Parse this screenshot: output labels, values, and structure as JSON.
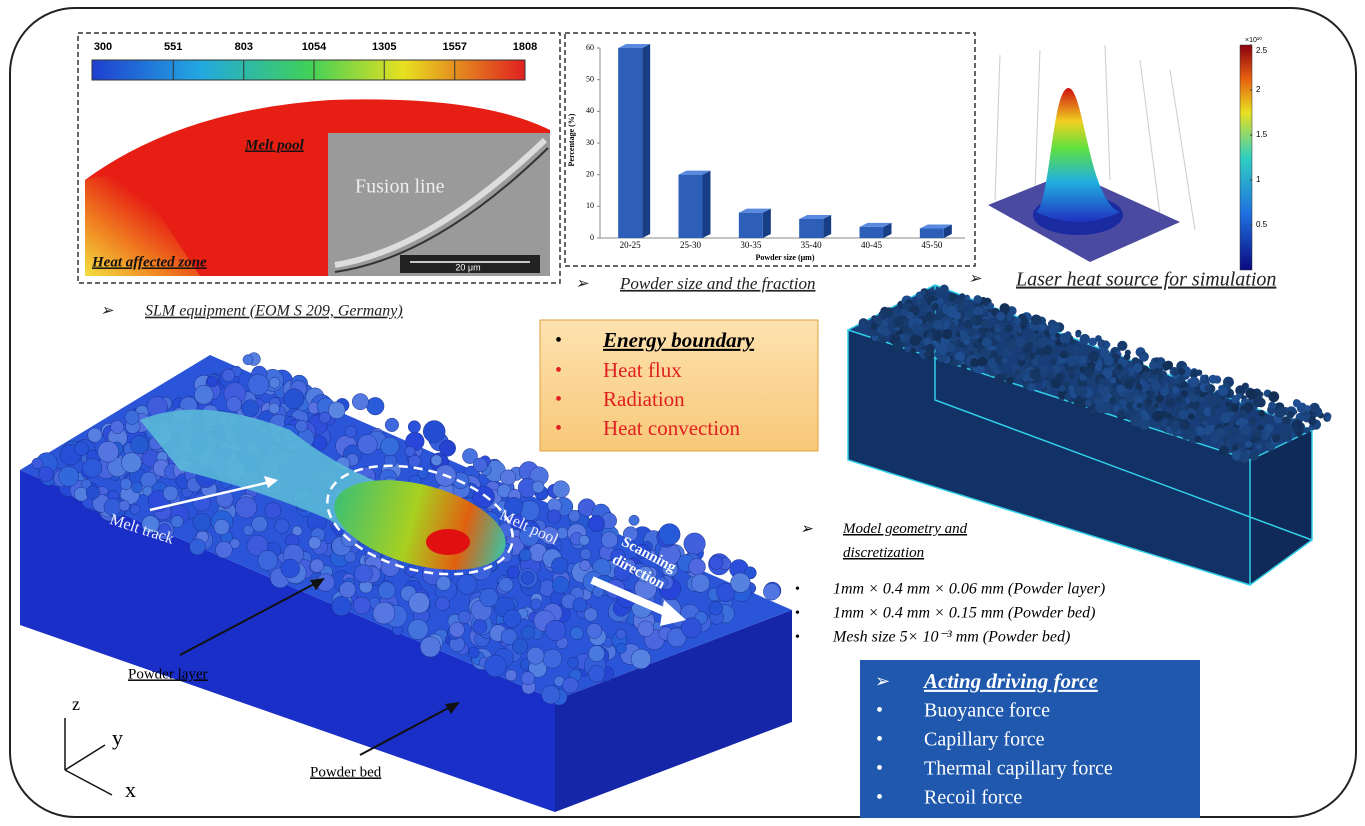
{
  "melt_pool_panel": {
    "colorbar_ticks": [
      300,
      551,
      803,
      1054,
      1305,
      1557,
      1808
    ],
    "labels": {
      "melt_pool": "Melt pool",
      "fusion_line": "Fusion line",
      "haz": "Heat affected zone",
      "scale": "20 μm"
    }
  },
  "captions": {
    "slm": "SLM equipment (EOM S 209, Germany)",
    "powder": "Powder size and the fraction",
    "laser": "Laser heat source for simulation"
  },
  "chart_data": {
    "type": "bar",
    "categories": [
      "20-25",
      "25-30",
      "30-35",
      "35-40",
      "40-45",
      "45-50"
    ],
    "values": [
      60,
      20,
      8,
      6,
      3.5,
      3
    ],
    "color": "#2d5fb8",
    "ylim": [
      0,
      60
    ],
    "yticks": [
      0,
      10,
      20,
      30,
      40,
      50,
      60
    ],
    "y_label": "Percentage (%)",
    "x_label": "Powder size (μm)"
  },
  "laser_panel": {
    "colorbar_exponent": "×10¹⁰",
    "colorbar_lim": [
      0,
      2.5
    ],
    "colorbar_ticks": [
      0.5,
      1,
      1.5,
      2,
      2.5
    ]
  },
  "energy_box": {
    "title": "Energy boundary",
    "items": [
      "Heat flux",
      "Radiation",
      "Heat convection"
    ]
  },
  "model": {
    "title": "Model geometry and discretization",
    "items": [
      "1mm × 0.4 mm × 0.06 mm (Powder layer)",
      "1mm × 0.4 mm × 0.15 mm (Powder bed)",
      "Mesh size 5× 10⁻³ mm (Powder bed)"
    ]
  },
  "force_box": {
    "title": "Acting driving force",
    "items": [
      "Buoyance force",
      "Capillary force",
      "Thermal capillary force",
      "Recoil force"
    ]
  },
  "simulation": {
    "melt_track": "Melt track",
    "melt_pool": "Melt pool",
    "scanning": "Scanning direction",
    "powder_layer": "Powder layer",
    "powder_bed": "Powder bed",
    "axes": [
      "z",
      "y",
      "x"
    ]
  }
}
